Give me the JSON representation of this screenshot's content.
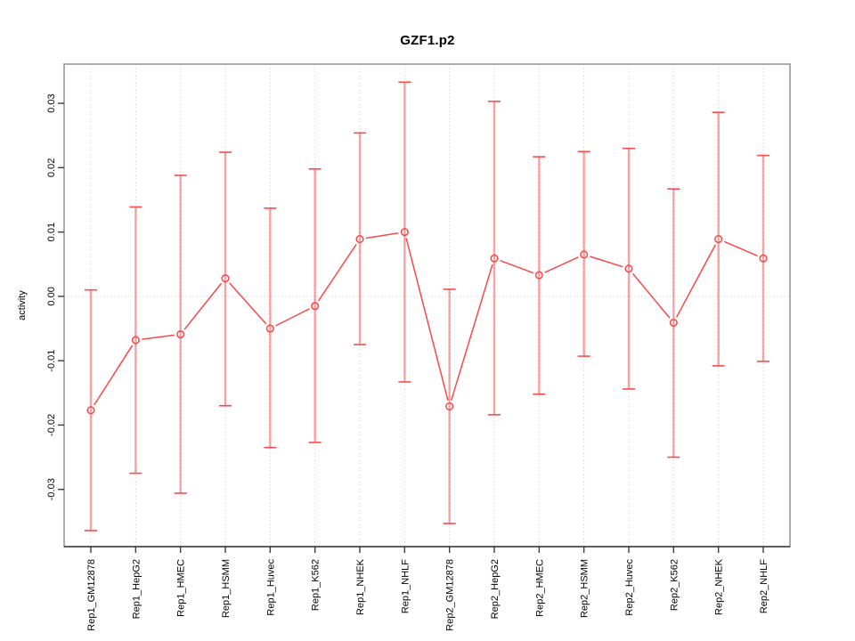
{
  "chart_data": {
    "type": "line",
    "title": "GZF1.p2",
    "ylabel": "activity",
    "xlabel": "",
    "legend_position": "none",
    "grid": "vertical-dotted-per-category-plus-dotted-zero-line",
    "categories": [
      "Rep1_GM12878",
      "Rep1_HepG2",
      "Rep1_HMEC",
      "Rep1_HSMM",
      "Rep1_Huvec",
      "Rep1_K562",
      "Rep1_NHEK",
      "Rep1_NHLF",
      "Rep2_GM12878",
      "Rep2_HepG2",
      "Rep2_HMEC",
      "Rep2_HSMM",
      "Rep2_Huvec",
      "Rep2_K562",
      "Rep2_NHEK",
      "Rep2_NHLF"
    ],
    "series": [
      {
        "name": "activity",
        "values": [
          -0.0177,
          -0.0068,
          -0.0059,
          0.0028,
          -0.005,
          -0.0015,
          0.0089,
          0.01,
          -0.0171,
          0.0059,
          0.0033,
          0.0065,
          0.0043,
          -0.0041,
          0.0089,
          0.0059
        ],
        "error_upper": [
          0.001,
          0.0139,
          0.0188,
          0.0224,
          0.0137,
          0.0198,
          0.0254,
          0.0333,
          0.0011,
          0.0303,
          0.0217,
          0.0225,
          0.023,
          0.0167,
          0.0286,
          0.0219
        ],
        "error_lower": [
          -0.0364,
          -0.0275,
          -0.0306,
          -0.017,
          -0.0235,
          -0.0227,
          -0.0075,
          -0.0133,
          -0.0353,
          -0.0184,
          -0.0152,
          -0.0093,
          -0.0144,
          -0.025,
          -0.0108,
          -0.0101
        ]
      }
    ],
    "yticks": [
      0.03,
      0.02,
      0.01,
      0.0,
      -0.01,
      -0.02,
      -0.03
    ],
    "ytick_labels": [
      "0.03",
      "0.02",
      "0.01",
      "0.00",
      "-0.01",
      "-0.02",
      "-0.03"
    ],
    "ylim": [
      -0.0389,
      0.0361
    ],
    "marker": "open-circle",
    "colors": {
      "series_line": "#f84848",
      "marker_stroke": "#f84848",
      "error_bar": "#fb5a5a",
      "error_bar_cap": "#fb4b4b",
      "gridline": "#d8d8d8",
      "zero_line": "#d8d8d8",
      "frame": "#979797",
      "axis_line": "#3c3c3c",
      "tick": "#3c3c3c",
      "text": "#000000",
      "background": "#ffffff"
    }
  }
}
